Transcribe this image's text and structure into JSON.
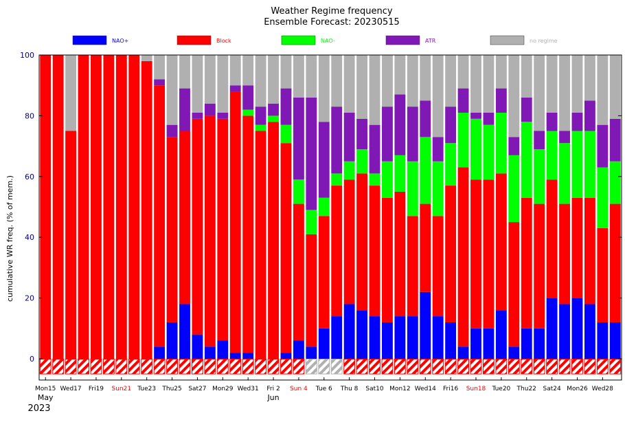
{
  "chart_data": {
    "type": "bar",
    "stacked": true,
    "title": "Weather Regime frequency",
    "subtitle": "Ensemble Forecast: 20230515",
    "ylabel": "cumulative WR freq. (% of mem.)",
    "xlabel": "",
    "ylim": [
      -7,
      100
    ],
    "yticks": [
      0,
      20,
      40,
      60,
      80,
      100
    ],
    "legend_position": "top",
    "grid": false,
    "colors": {
      "NAO+": "#0000ff",
      "Block": "#ff0000",
      "NAO-": "#00ff00",
      "ATR": "#7f18b5",
      "no regime": "#b0b0b0"
    },
    "legend": [
      {
        "label": "NAO+",
        "color": "#0000ff",
        "text_color": "#0000ff"
      },
      {
        "label": "Block",
        "color": "#ff0000",
        "text_color": "#ff0000"
      },
      {
        "label": "NAO-",
        "color": "#00ff00",
        "text_color": "#00ff00"
      },
      {
        "label": "ATR",
        "color": "#7f18b5",
        "text_color": "#7f18b5"
      },
      {
        "label": "no regime",
        "color": "#b0b0b0",
        "text_color": "#b0b0b0"
      }
    ],
    "x_tick_labels": [
      {
        "day": 0,
        "label": "Mon15",
        "color": "#000000"
      },
      {
        "day": 2,
        "label": "Wed17",
        "color": "#000000"
      },
      {
        "day": 4,
        "label": "Fri19",
        "color": "#000000"
      },
      {
        "day": 6,
        "label": "Sun21",
        "color": "#ff0000"
      },
      {
        "day": 8,
        "label": "Tue23",
        "color": "#000000"
      },
      {
        "day": 10,
        "label": "Thu25",
        "color": "#000000"
      },
      {
        "day": 12,
        "label": "Sat27",
        "color": "#000000"
      },
      {
        "day": 14,
        "label": "Mon29",
        "color": "#000000"
      },
      {
        "day": 16,
        "label": "Wed31",
        "color": "#000000"
      },
      {
        "day": 18,
        "label": "Fri 2",
        "color": "#000000"
      },
      {
        "day": 20,
        "label": "Sun 4",
        "color": "#ff0000"
      },
      {
        "day": 22,
        "label": "Tue 6",
        "color": "#000000"
      },
      {
        "day": 24,
        "label": "Thu 8",
        "color": "#000000"
      },
      {
        "day": 26,
        "label": "Sat10",
        "color": "#000000"
      },
      {
        "day": 28,
        "label": "Mon12",
        "color": "#000000"
      },
      {
        "day": 30,
        "label": "Wed14",
        "color": "#000000"
      },
      {
        "day": 32,
        "label": "Fri16",
        "color": "#000000"
      },
      {
        "day": 34,
        "label": "Sun18",
        "color": "#ff0000"
      },
      {
        "day": 36,
        "label": "Tue20",
        "color": "#000000"
      },
      {
        "day": 38,
        "label": "Thu22",
        "color": "#000000"
      },
      {
        "day": 40,
        "label": "Sat24",
        "color": "#000000"
      },
      {
        "day": 42,
        "label": "Mon26",
        "color": "#000000"
      },
      {
        "day": 44,
        "label": "Wed28",
        "color": "#000000"
      }
    ],
    "month_labels": [
      {
        "day": 0,
        "label": "May"
      },
      {
        "day": 18,
        "label": "Jun"
      }
    ],
    "year_label": "2023",
    "stack_order": [
      "NAO+",
      "Block",
      "NAO-",
      "ATR",
      "no regime"
    ],
    "days": [
      {
        "NAO+": 0,
        "Block": 100,
        "NAO-": 0,
        "ATR": 0,
        "no regime": 0,
        "bottom": "Block"
      },
      {
        "NAO+": 0,
        "Block": 100,
        "NAO-": 0,
        "ATR": 0,
        "no regime": 0,
        "bottom": "Block"
      },
      {
        "NAO+": 0,
        "Block": 75,
        "NAO-": 0,
        "ATR": 0,
        "no regime": 25,
        "bottom": "Block"
      },
      {
        "NAO+": 0,
        "Block": 100,
        "NAO-": 0,
        "ATR": 0,
        "no regime": 0,
        "bottom": "Block"
      },
      {
        "NAO+": 0,
        "Block": 100,
        "NAO-": 0,
        "ATR": 0,
        "no regime": 0,
        "bottom": "Block"
      },
      {
        "NAO+": 0,
        "Block": 100,
        "NAO-": 0,
        "ATR": 0,
        "no regime": 0,
        "bottom": "Block"
      },
      {
        "NAO+": 0,
        "Block": 100,
        "NAO-": 0,
        "ATR": 0,
        "no regime": 0,
        "bottom": "Block"
      },
      {
        "NAO+": 0,
        "Block": 100,
        "NAO-": 0,
        "ATR": 0,
        "no regime": 0,
        "bottom": "Block"
      },
      {
        "NAO+": 0,
        "Block": 98,
        "NAO-": 0,
        "ATR": 0,
        "no regime": 2,
        "bottom": "Block"
      },
      {
        "NAO+": 4,
        "Block": 86,
        "NAO-": 0,
        "ATR": 2,
        "no regime": 8,
        "bottom": "Block"
      },
      {
        "NAO+": 12,
        "Block": 61,
        "NAO-": 0,
        "ATR": 4,
        "no regime": 23,
        "bottom": "Block"
      },
      {
        "NAO+": 18,
        "Block": 57,
        "NAO-": 0,
        "ATR": 14,
        "no regime": 11,
        "bottom": "Block"
      },
      {
        "NAO+": 8,
        "Block": 71,
        "NAO-": 0,
        "ATR": 2,
        "no regime": 19,
        "bottom": "Block"
      },
      {
        "NAO+": 4,
        "Block": 76,
        "NAO-": 0,
        "ATR": 4,
        "no regime": 16,
        "bottom": "Block"
      },
      {
        "NAO+": 6,
        "Block": 73,
        "NAO-": 0,
        "ATR": 2,
        "no regime": 19,
        "bottom": "Block"
      },
      {
        "NAO+": 2,
        "Block": 86,
        "NAO-": 0,
        "ATR": 2,
        "no regime": 10,
        "bottom": "Block"
      },
      {
        "NAO+": 2,
        "Block": 78,
        "NAO-": 2,
        "ATR": 8,
        "no regime": 10,
        "bottom": "Block"
      },
      {
        "NAO+": 0,
        "Block": 75,
        "NAO-": 2,
        "ATR": 6,
        "no regime": 17,
        "bottom": "Block"
      },
      {
        "NAO+": 0,
        "Block": 78,
        "NAO-": 2,
        "ATR": 4,
        "no regime": 16,
        "bottom": "Block"
      },
      {
        "NAO+": 2,
        "Block": 69,
        "NAO-": 6,
        "ATR": 12,
        "no regime": 11,
        "bottom": "Block"
      },
      {
        "NAO+": 6,
        "Block": 45,
        "NAO-": 8,
        "ATR": 27,
        "no regime": 14,
        "bottom": "Block"
      },
      {
        "NAO+": 4,
        "Block": 37,
        "NAO-": 8,
        "ATR": 37,
        "no regime": 14,
        "bottom": "no regime"
      },
      {
        "NAO+": 10,
        "Block": 37,
        "NAO-": 6,
        "ATR": 25,
        "no regime": 22,
        "bottom": "no regime"
      },
      {
        "NAO+": 14,
        "Block": 43,
        "NAO-": 4,
        "ATR": 22,
        "no regime": 17,
        "bottom": "no regime"
      },
      {
        "NAO+": 18,
        "Block": 41,
        "NAO-": 6,
        "ATR": 16,
        "no regime": 19,
        "bottom": "Block"
      },
      {
        "NAO+": 16,
        "Block": 45,
        "NAO-": 8,
        "ATR": 10,
        "no regime": 21,
        "bottom": "Block"
      },
      {
        "NAO+": 14,
        "Block": 43,
        "NAO-": 4,
        "ATR": 16,
        "no regime": 23,
        "bottom": "Block"
      },
      {
        "NAO+": 12,
        "Block": 41,
        "NAO-": 12,
        "ATR": 18,
        "no regime": 17,
        "bottom": "Block"
      },
      {
        "NAO+": 14,
        "Block": 41,
        "NAO-": 12,
        "ATR": 20,
        "no regime": 13,
        "bottom": "Block"
      },
      {
        "NAO+": 14,
        "Block": 33,
        "NAO-": 18,
        "ATR": 18,
        "no regime": 17,
        "bottom": "Block"
      },
      {
        "NAO+": 22,
        "Block": 29,
        "NAO-": 22,
        "ATR": 12,
        "no regime": 15,
        "bottom": "Block"
      },
      {
        "NAO+": 14,
        "Block": 33,
        "NAO-": 18,
        "ATR": 8,
        "no regime": 27,
        "bottom": "Block"
      },
      {
        "NAO+": 12,
        "Block": 45,
        "NAO-": 14,
        "ATR": 12,
        "no regime": 17,
        "bottom": "Block"
      },
      {
        "NAO+": 4,
        "Block": 59,
        "NAO-": 18,
        "ATR": 8,
        "no regime": 11,
        "bottom": "Block"
      },
      {
        "NAO+": 10,
        "Block": 49,
        "NAO-": 20,
        "ATR": 2,
        "no regime": 19,
        "bottom": "Block"
      },
      {
        "NAO+": 10,
        "Block": 49,
        "NAO-": 18,
        "ATR": 4,
        "no regime": 19,
        "bottom": "Block"
      },
      {
        "NAO+": 16,
        "Block": 45,
        "NAO-": 20,
        "ATR": 8,
        "no regime": 11,
        "bottom": "Block"
      },
      {
        "NAO+": 4,
        "Block": 41,
        "NAO-": 22,
        "ATR": 6,
        "no regime": 27,
        "bottom": "Block"
      },
      {
        "NAO+": 10,
        "Block": 43,
        "NAO-": 25,
        "ATR": 8,
        "no regime": 14,
        "bottom": "Block"
      },
      {
        "NAO+": 10,
        "Block": 41,
        "NAO-": 18,
        "ATR": 6,
        "no regime": 25,
        "bottom": "Block"
      },
      {
        "NAO+": 20,
        "Block": 39,
        "NAO-": 16,
        "ATR": 6,
        "no regime": 19,
        "bottom": "Block"
      },
      {
        "NAO+": 18,
        "Block": 33,
        "NAO-": 20,
        "ATR": 4,
        "no regime": 25,
        "bottom": "Block"
      },
      {
        "NAO+": 20,
        "Block": 33,
        "NAO-": 22,
        "ATR": 6,
        "no regime": 19,
        "bottom": "Block"
      },
      {
        "NAO+": 18,
        "Block": 35,
        "NAO-": 22,
        "ATR": 10,
        "no regime": 15,
        "bottom": "Block"
      },
      {
        "NAO+": 12,
        "Block": 31,
        "NAO-": 20,
        "ATR": 14,
        "no regime": 23,
        "bottom": "Block"
      },
      {
        "NAO+": 12,
        "Block": 39,
        "NAO-": 14,
        "ATR": 14,
        "no regime": 21,
        "bottom": "Block"
      }
    ]
  }
}
